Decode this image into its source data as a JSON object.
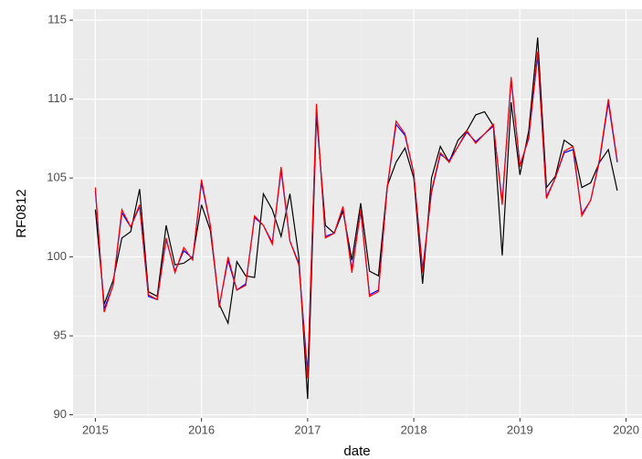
{
  "chart_data": {
    "type": "line",
    "xlabel": "date",
    "ylabel": "RF0812",
    "x": [
      2015,
      2015.083,
      2015.167,
      2015.25,
      2015.333,
      2015.417,
      2015.5,
      2015.583,
      2015.667,
      2015.75,
      2015.833,
      2015.917,
      2016,
      2016.083,
      2016.167,
      2016.25,
      2016.333,
      2016.417,
      2016.5,
      2016.583,
      2016.667,
      2016.75,
      2016.833,
      2016.917,
      2017,
      2017.083,
      2017.167,
      2017.25,
      2017.333,
      2017.417,
      2017.5,
      2017.583,
      2017.667,
      2017.75,
      2017.833,
      2017.917,
      2018,
      2018.083,
      2018.167,
      2018.25,
      2018.333,
      2018.417,
      2018.5,
      2018.583,
      2018.667,
      2018.75,
      2018.833,
      2018.917,
      2019,
      2019.083,
      2019.167,
      2019.25,
      2019.333,
      2019.417,
      2019.5,
      2019.583,
      2019.667,
      2019.75,
      2019.833,
      2019.917
    ],
    "series": [
      {
        "color": "#000000",
        "values": [
          103,
          97,
          98.5,
          101.2,
          101.6,
          104.3,
          97.8,
          97.5,
          102,
          99.5,
          99.6,
          100,
          103.3,
          101.7,
          97,
          95.8,
          99.7,
          98.8,
          98.7,
          104,
          103,
          101.3,
          104,
          100,
          91,
          109,
          102,
          101.5,
          102.9,
          99.8,
          103.4,
          99.1,
          98.8,
          104.5,
          106,
          106.9,
          105,
          98.3,
          105,
          107,
          106,
          107.4,
          108,
          109,
          109.2,
          108.3,
          100.1,
          109.8,
          105.2,
          108,
          113.9,
          104.4,
          105.1,
          107.4,
          107,
          104.4,
          104.7,
          106,
          106.8,
          104.2
        ]
      },
      {
        "color": "#0000ff",
        "values": [
          104.2,
          96.7,
          98.2,
          102.8,
          101.9,
          103.2,
          97.5,
          97.3,
          101.1,
          99.1,
          100.4,
          99.9,
          104.7,
          102,
          96.9,
          99.8,
          97.9,
          98.3,
          102.5,
          102,
          100.9,
          105.5,
          101,
          99.6,
          92.6,
          109.4,
          101.3,
          101.5,
          103.1,
          99.2,
          102.9,
          97.6,
          97.9,
          104.4,
          108.4,
          107.7,
          105.3,
          99.2,
          104.1,
          106.5,
          106.1,
          107,
          107.9,
          107.3,
          107.8,
          108.3,
          103.5,
          111.2,
          105.8,
          107.5,
          112.8,
          103.8,
          105,
          106.6,
          106.8,
          102.7,
          103.6,
          106.1,
          109.8,
          106
        ]
      },
      {
        "color": "#ff0000",
        "values": [
          104.4,
          96.5,
          98.2,
          103,
          101.9,
          103.3,
          97.6,
          97.3,
          101.2,
          99,
          100.6,
          99.8,
          104.9,
          102,
          96.8,
          100,
          97.9,
          98.2,
          102.6,
          102,
          100.8,
          105.7,
          101,
          99.5,
          92.3,
          109.7,
          101.2,
          101.5,
          103.2,
          99,
          103,
          97.5,
          97.8,
          104.4,
          108.6,
          107.8,
          105.3,
          99,
          104.2,
          106.6,
          106,
          107,
          108,
          107.2,
          107.8,
          108.4,
          103.3,
          111.4,
          105.7,
          107.6,
          113,
          103.7,
          105,
          106.7,
          107,
          102.6,
          103.6,
          106.2,
          110,
          106.1
        ]
      }
    ],
    "xlim": [
      2014.79,
      2020.15
    ],
    "xticks": [
      2015,
      2016,
      2017,
      2018,
      2019,
      2020
    ],
    "ylim": [
      89.8,
      115.7
    ],
    "yticks": [
      90,
      95,
      100,
      105,
      110,
      115
    ],
    "grid": true
  }
}
